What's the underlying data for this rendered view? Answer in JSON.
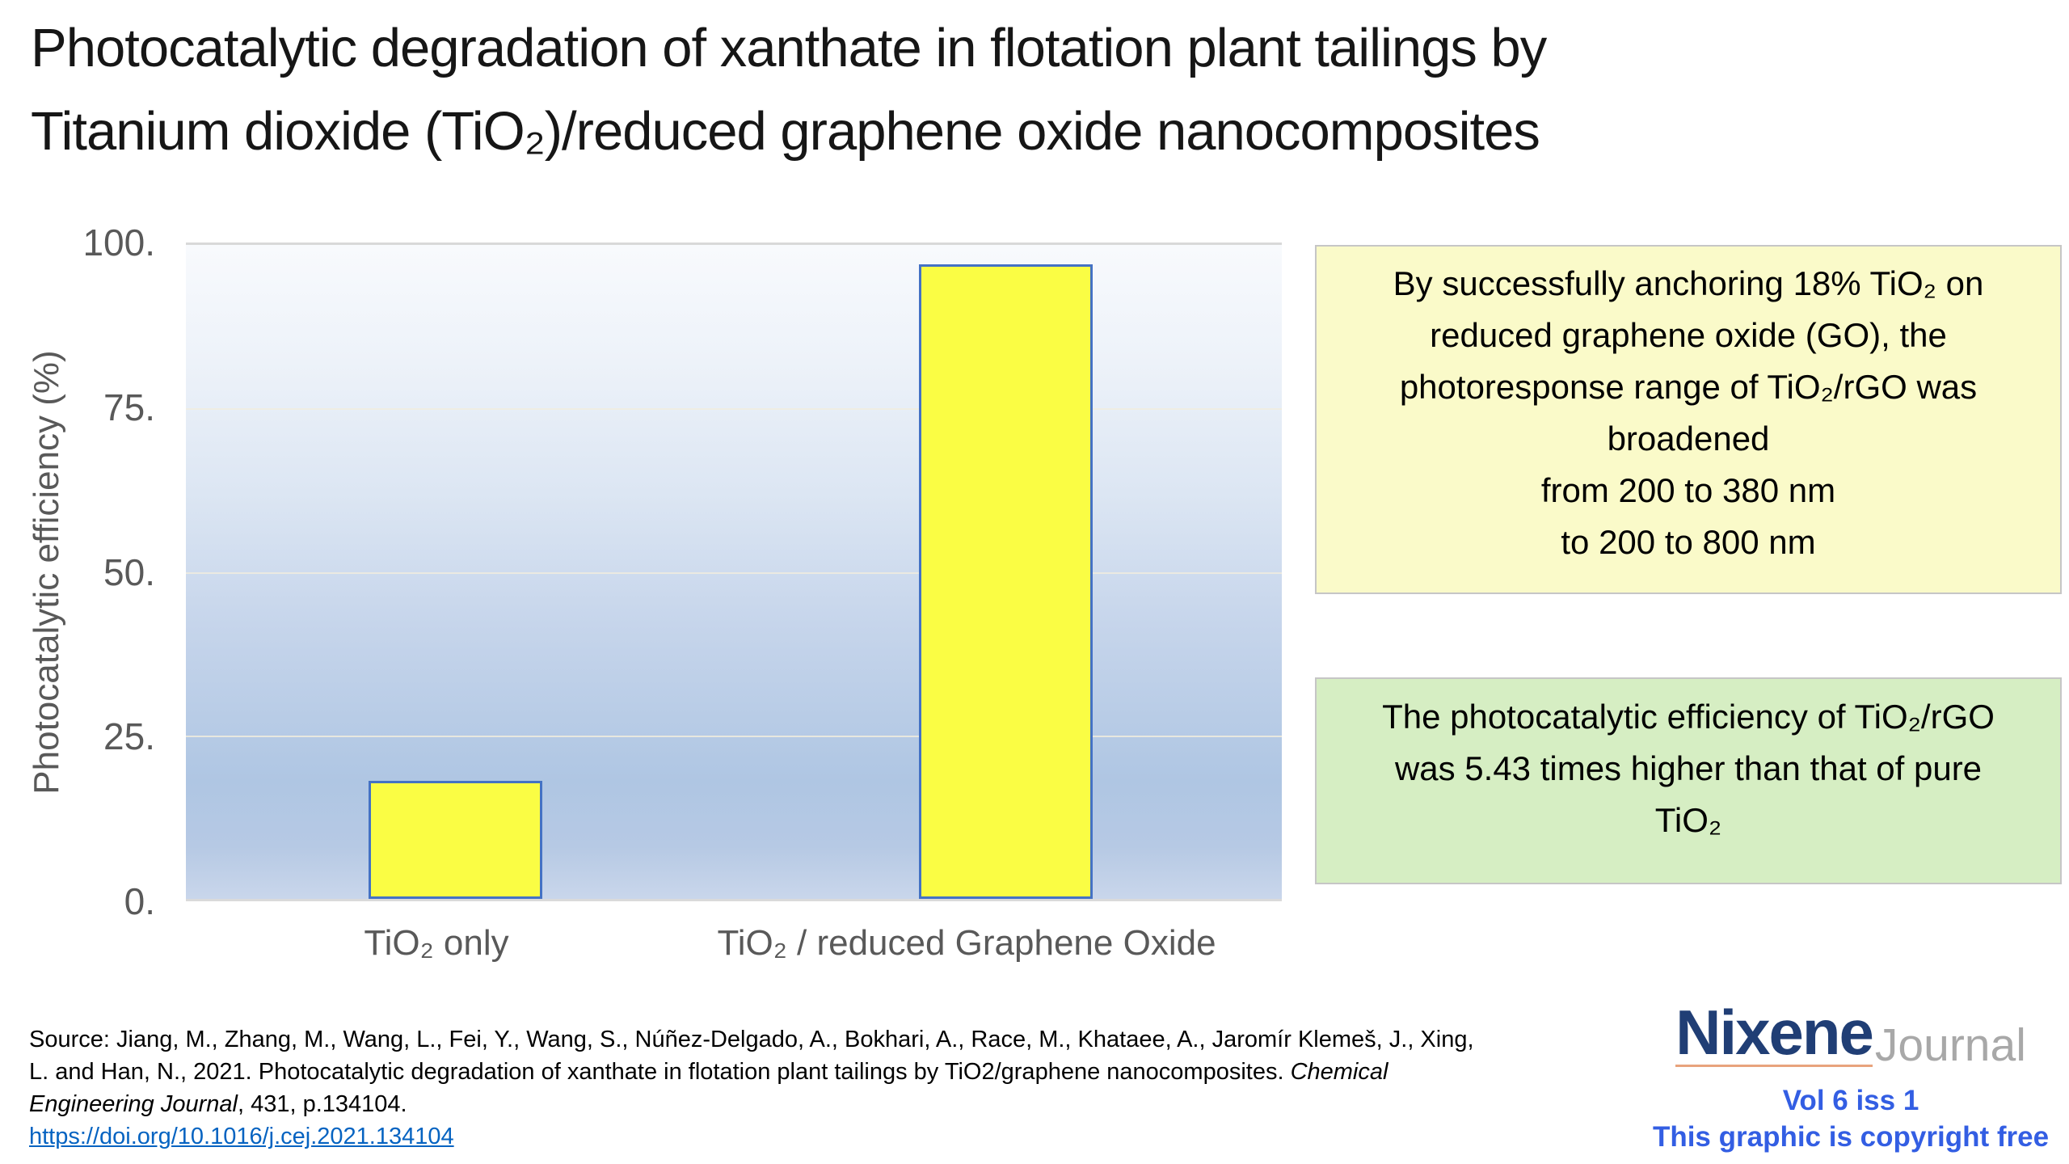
{
  "title": {
    "line1": "Photocatalytic degradation of xanthate in flotation plant tailings by",
    "line2": "Titanium dioxide (TiO₂)/reduced graphene oxide nanocomposites"
  },
  "chart_data": {
    "type": "bar",
    "title": "",
    "categories": [
      "TiO₂ only",
      "TiO₂ / reduced Graphene Oxide"
    ],
    "values": [
      18,
      97
    ],
    "xlabel": "",
    "ylabel": "Photocatalytic efficiency (%)",
    "ylim": [
      0,
      100
    ],
    "yticks": [
      100,
      75,
      50,
      25,
      0
    ],
    "ytick_labels": [
      "100.",
      "75.",
      "50.",
      "25.",
      "0."
    ],
    "grid": true,
    "legend": false,
    "bar_fill": "#FAFD44",
    "bar_border": "#4472C4"
  },
  "boxes": {
    "yellow": {
      "bg": "#FAFAC9",
      "lines": [
        "By successfully anchoring 18% TiO₂ on",
        "reduced graphene oxide (GO), the",
        "photoresponse range of TiO₂/rGO was",
        "broadened",
        "from 200 to 380 nm",
        "to 200 to 800 nm"
      ]
    },
    "green": {
      "bg": "#D6EEC3",
      "lines": [
        "The photocatalytic efficiency of TiO₂/rGO",
        "was 5.43 times higher than that of pure",
        "TiO₂"
      ]
    }
  },
  "source": {
    "label_line1": "Source:   Jiang, M., Zhang, M., Wang, L., Fei, Y., Wang, S., Núñez-Delgado, A., Bokhari, A., Race, M., Khataee, A., Jaromír Klemeš, J., Xing,",
    "line2_regular": "L. and Han, N., 2021. Photocatalytic degradation of xanthate in flotation plant tailings by TiO2/graphene nanocomposites. ",
    "line2_italic": "Chemical",
    "line3_italic": "Engineering Journal",
    "line3_regular": ", 431, p.134104.",
    "link": "https://doi.org/10.1016/j.cej.2021.134104",
    "link_color": "#0563C1"
  },
  "branding": {
    "logo_primary": "Nixene",
    "logo_secondary": "Journal",
    "volume": "Vol 6 iss 1",
    "copyright": "This graphic is copyright free",
    "colors": {
      "primary_navy": "#203E75",
      "secondary_gray": "#A8A8A8",
      "underline_accent": "#E8A37C",
      "blue_text": "#335EE3"
    }
  }
}
